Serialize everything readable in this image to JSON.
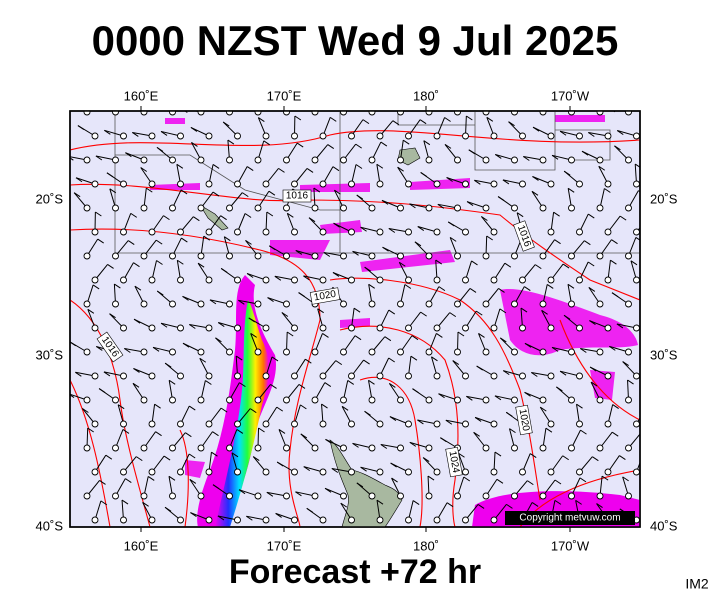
{
  "title": "0000 NZST Wed 9 Jul 2025",
  "footer": "Forecast +72 hr",
  "image_id": "IM2",
  "map": {
    "lon_labels": [
      "160˚E",
      "170˚E",
      "180˚",
      "170˚W"
    ],
    "lat_labels": [
      "20˚S",
      "30˚S",
      "40˚S"
    ],
    "isobar_labels": [
      "1016",
      "1016",
      "1020",
      "1016",
      "1020",
      "1024"
    ],
    "copyright": "Copyright metvuw.com"
  }
}
